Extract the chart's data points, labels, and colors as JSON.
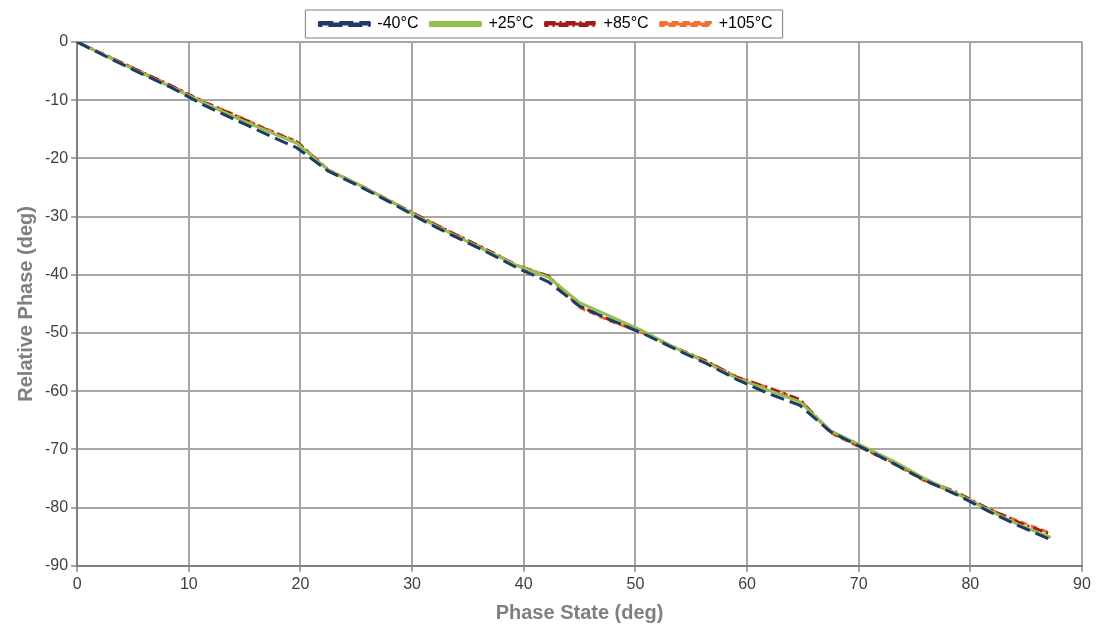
{
  "chart_data": {
    "type": "line",
    "xlabel": "Phase State (deg)",
    "ylabel": "Relative Phase (deg)",
    "x": [
      0,
      2.8,
      5.6,
      8.4,
      11.3,
      14.1,
      16.9,
      19.7,
      22.5,
      25.3,
      28.1,
      30.9,
      33.8,
      36.6,
      39.4,
      42.2,
      45,
      47.8,
      50.6,
      53.4,
      56.3,
      59.1,
      61.9,
      64.7,
      67.5,
      70.3,
      73.1,
      75.9,
      78.8,
      81.6,
      84.4,
      87.2
    ],
    "series": [
      {
        "name": "-40°C",
        "color": "#1f3a68",
        "line_style": "dashed",
        "values": [
          0,
          -2.7,
          -5.3,
          -7.8,
          -10.8,
          -13.3,
          -15.8,
          -18.2,
          -22.2,
          -24.8,
          -27.6,
          -30.6,
          -33.4,
          -36,
          -38.8,
          -41.2,
          -45.4,
          -47.8,
          -50,
          -52.6,
          -55.2,
          -58,
          -60.4,
          -62.4,
          -67,
          -69.7,
          -72.4,
          -75.3,
          -77.8,
          -80.6,
          -83.2,
          -85.5
        ]
      },
      {
        "name": "+25°C",
        "color": "#92c050",
        "line_style": "solid",
        "values": [
          0,
          -2.6,
          -5.2,
          -7.7,
          -10.4,
          -12.9,
          -15.2,
          -17.4,
          -22,
          -24.6,
          -27.4,
          -30.4,
          -33.2,
          -35.8,
          -38.4,
          -40.4,
          -44.8,
          -47.2,
          -49.6,
          -52.4,
          -55,
          -57.8,
          -59.8,
          -61.8,
          -66.8,
          -69.4,
          -72,
          -75,
          -77.6,
          -80.4,
          -83,
          -85.1
        ]
      },
      {
        "name": "+85°C",
        "color": "#a01c1c",
        "line_style": "dashdot",
        "values": [
          0,
          -2.5,
          -5,
          -7.5,
          -10.3,
          -12.6,
          -15,
          -17.2,
          -22,
          -24.6,
          -27.4,
          -30.2,
          -33,
          -35.6,
          -38.4,
          -40.2,
          -45.4,
          -47.8,
          -49.8,
          -52.4,
          -54.8,
          -57.6,
          -59.4,
          -61.4,
          -67,
          -69.6,
          -72.2,
          -75.2,
          -77.4,
          -80.2,
          -82.6,
          -84.6
        ]
      },
      {
        "name": "+105°C",
        "color": "#f07030",
        "line_style": "dotted",
        "values": [
          0,
          -2.5,
          -5,
          -7.5,
          -10.2,
          -12.5,
          -14.9,
          -17.1,
          -22,
          -24.6,
          -27.4,
          -30.2,
          -33,
          -35.6,
          -38.4,
          -40.2,
          -45.6,
          -48,
          -49.9,
          -52.4,
          -54.8,
          -57.6,
          -59.4,
          -61.4,
          -67.2,
          -69.8,
          -72.4,
          -75.4,
          -77.6,
          -80.2,
          -82.4,
          -84.4
        ]
      }
    ],
    "xlim": [
      0,
      90
    ],
    "xticks": [
      0,
      10,
      20,
      30,
      40,
      50,
      60,
      70,
      80,
      90
    ],
    "ylim": [
      -90,
      0
    ],
    "yticks": [
      0,
      -10,
      -20,
      -30,
      -40,
      -50,
      -60,
      -70,
      -80,
      -90
    ],
    "grid": true,
    "legend": "top"
  }
}
